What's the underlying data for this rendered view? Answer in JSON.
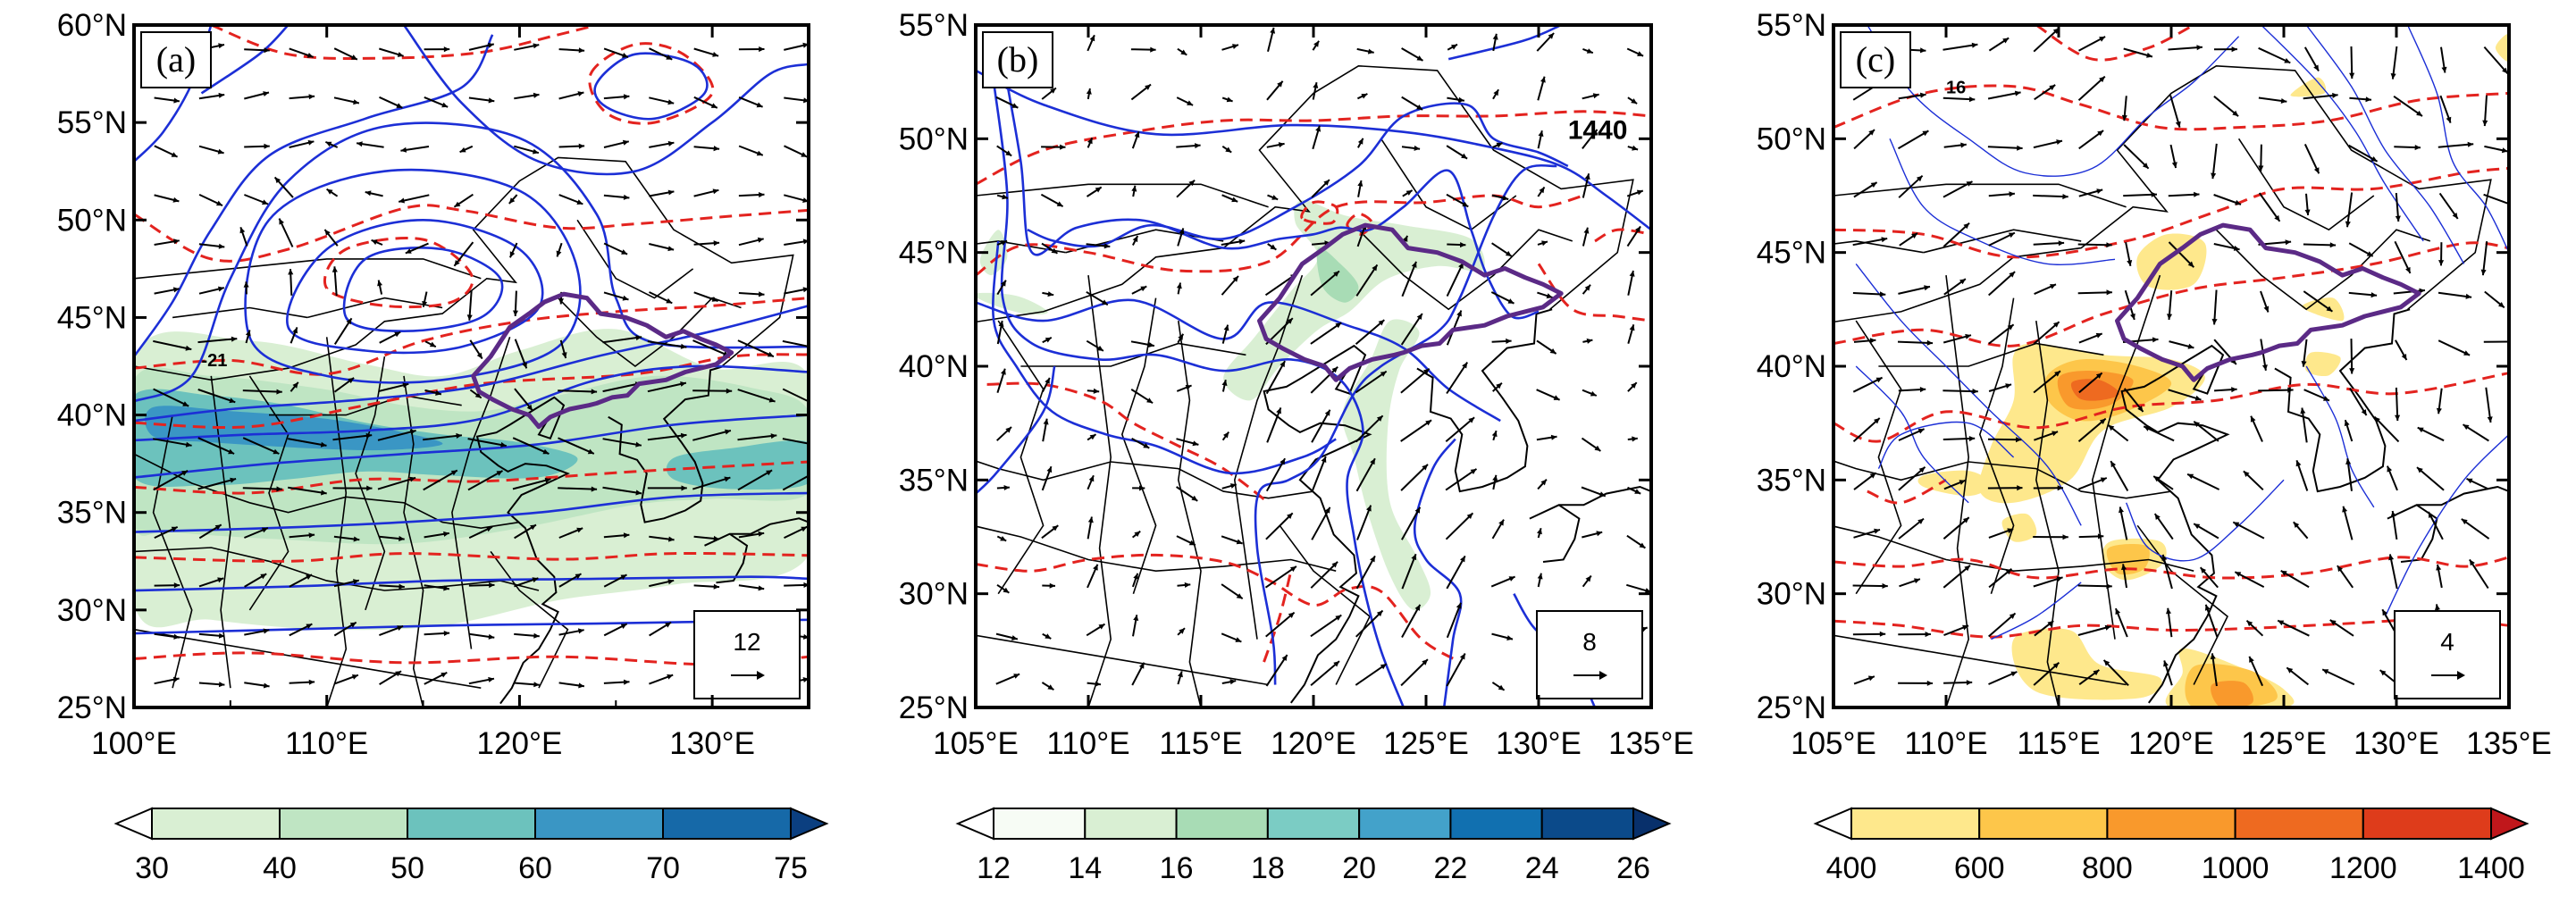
{
  "figure": {
    "panels": [
      {
        "id": "a",
        "label": "(a)",
        "lon_range": [
          100,
          135
        ],
        "lat_range": [
          25,
          60
        ],
        "x_ticks": [
          100,
          110,
          120,
          130
        ],
        "x_tick_labels": [
          "100°E",
          "110°E",
          "120°E",
          "130°E"
        ],
        "y_ticks": [
          25,
          30,
          35,
          40,
          45,
          50,
          55,
          60
        ],
        "y_tick_labels": [
          "25°N",
          "30°N",
          "35°N",
          "40°N",
          "45°N",
          "50°N",
          "55°N",
          "60°N"
        ],
        "reference_vector": "12",
        "contour_labels": [
          "-21"
        ],
        "colorbar": {
          "levels": [
            "30",
            "40",
            "50",
            "60",
            "70",
            "75"
          ],
          "colors": [
            "#ffffff",
            "#d9efd3",
            "#bfe5c3",
            "#6cc2bd",
            "#3a96c4",
            "#1669a8",
            "#0b3f80"
          ]
        }
      },
      {
        "id": "b",
        "label": "(b)",
        "lon_range": [
          105,
          135
        ],
        "lat_range": [
          25,
          55
        ],
        "x_ticks": [
          105,
          110,
          115,
          120,
          125,
          130,
          135
        ],
        "x_tick_labels": [
          "105°E",
          "110°E",
          "115°E",
          "120°E",
          "125°E",
          "130°E",
          "135°E"
        ],
        "y_ticks": [
          25,
          30,
          35,
          40,
          45,
          50,
          55
        ],
        "y_tick_labels": [
          "25°N",
          "30°N",
          "35°N",
          "40°N",
          "45°N",
          "50°N",
          "55°N"
        ],
        "reference_vector": "8",
        "contour_labels": [
          "1440"
        ],
        "colorbar": {
          "levels": [
            "12",
            "14",
            "16",
            "18",
            "20",
            "22",
            "24",
            "26"
          ],
          "colors": [
            "#ffffff",
            "#f7fcf5",
            "#d9efd3",
            "#a8dcb5",
            "#7bccc4",
            "#43a2ca",
            "#1170b0",
            "#0b4a8a",
            "#08306b"
          ]
        }
      },
      {
        "id": "c",
        "label": "(c)",
        "lon_range": [
          105,
          135
        ],
        "lat_range": [
          25,
          55
        ],
        "x_ticks": [
          105,
          110,
          115,
          120,
          125,
          130,
          135
        ],
        "x_tick_labels": [
          "105°E",
          "110°E",
          "115°E",
          "120°E",
          "125°E",
          "130°E",
          "135°E"
        ],
        "y_ticks": [
          25,
          30,
          35,
          40,
          45,
          50,
          55
        ],
        "y_tick_labels": [
          "25°N",
          "30°N",
          "35°N",
          "40°N",
          "45°N",
          "50°N",
          "55°N"
        ],
        "reference_vector": "4",
        "contour_labels": [
          "16"
        ],
        "colorbar": {
          "levels": [
            "400",
            "600",
            "800",
            "1000",
            "1200",
            "1400"
          ],
          "colors": [
            "#ffffff",
            "#fee88c",
            "#fdc64a",
            "#f9992c",
            "#ee6a20",
            "#de3c1b",
            "#c0171b"
          ]
        }
      }
    ],
    "colors": {
      "blue_contour": "#1c2fd6",
      "red_dashed_contour": "#e3231f",
      "region_outline": "#5b2a86",
      "borders": "#000000"
    }
  }
}
